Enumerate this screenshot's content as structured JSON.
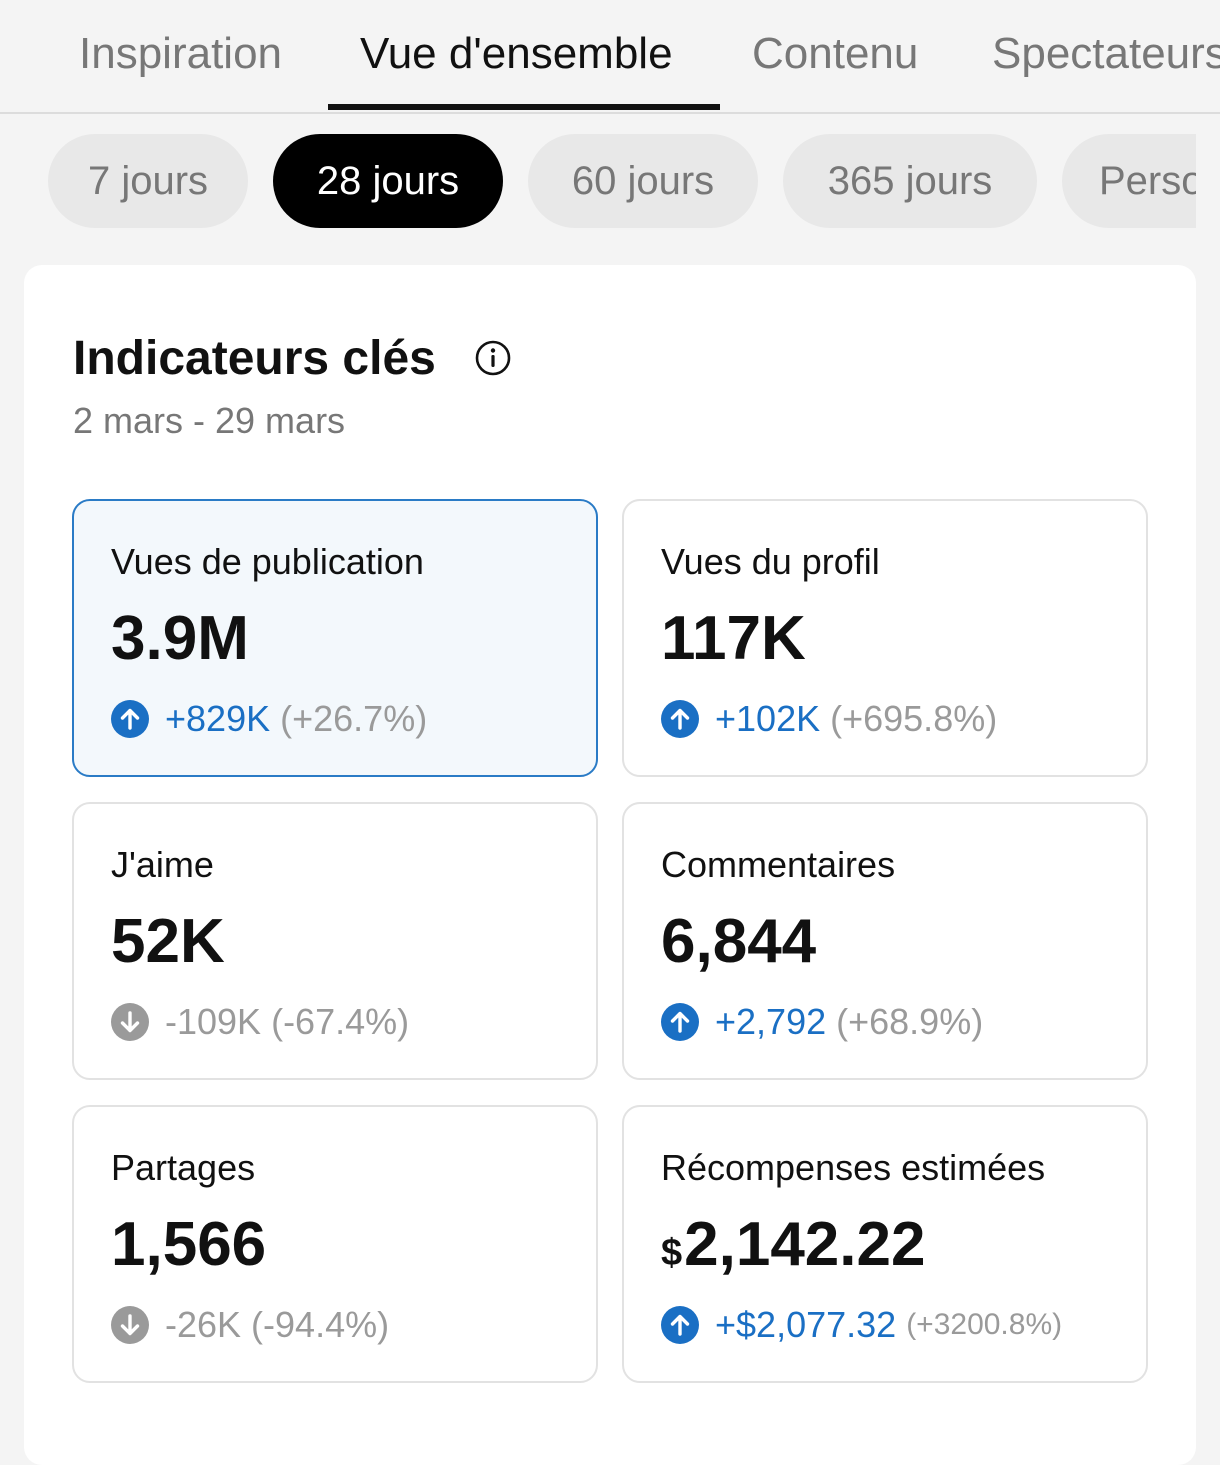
{
  "colors": {
    "accent": "#1a6fc4",
    "selected_border": "#2a7bc6",
    "selected_bg": "#f3f8fc",
    "muted": "#9a9a9a",
    "chip_bg": "#e8e8e8",
    "chip_active_bg": "#000000"
  },
  "tabs": [
    {
      "label": "Inspiration",
      "active": false
    },
    {
      "label": "Vue d'ensemble",
      "active": true
    },
    {
      "label": "Contenu",
      "active": false
    },
    {
      "label": "Spectateurs",
      "active": false
    }
  ],
  "periods": [
    {
      "label": "7 jours",
      "active": false
    },
    {
      "label": "28 jours",
      "active": true
    },
    {
      "label": "60 jours",
      "active": false
    },
    {
      "label": "365 jours",
      "active": false
    },
    {
      "label": "Personnalisé",
      "active": false
    }
  ],
  "key_metrics": {
    "title": "Indicateurs clés",
    "info_icon": "info-icon",
    "date_range": "2 mars - 29 mars",
    "cards": [
      {
        "label": "Vues de publication",
        "value": "3.9M",
        "trend": "up",
        "delta": "+829K",
        "delta_pct": "(+26.7%)",
        "selected": true
      },
      {
        "label": "Vues du profil",
        "value": "117K",
        "trend": "up",
        "delta": "+102K",
        "delta_pct": "(+695.8%)",
        "selected": false
      },
      {
        "label": "J'aime",
        "value": "52K",
        "trend": "down",
        "delta": "-109K",
        "delta_pct": "(-67.4%)",
        "selected": false
      },
      {
        "label": "Commentaires",
        "value": "6,844",
        "trend": "up",
        "delta": "+2,792",
        "delta_pct": "(+68.9%)",
        "selected": false
      },
      {
        "label": "Partages",
        "value": "1,566",
        "trend": "down",
        "delta": "-26K",
        "delta_pct": "(-94.4%)",
        "selected": false
      },
      {
        "label": "Récompenses estimées",
        "currency": "$",
        "value": "2,142.22",
        "trend": "up",
        "delta": "+$2,077.32",
        "delta_pct": "(+3200.8%)",
        "selected": false
      }
    ]
  }
}
